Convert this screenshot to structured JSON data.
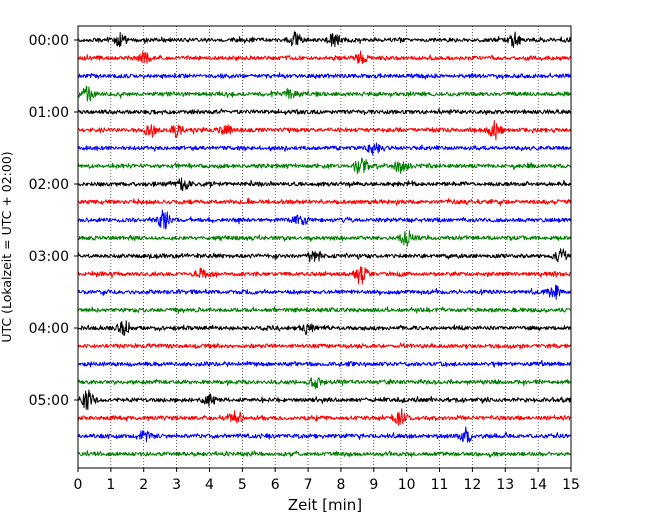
{
  "chart_data": {
    "type": "line",
    "subtype": "helicorder",
    "title": "",
    "xlabel": "Zeit  [min]",
    "ylabel": "UTC (Lokalzeit = UTC + 02:00)",
    "xlim": [
      0,
      15
    ],
    "x_ticks": [
      "0",
      "1",
      "2",
      "3",
      "4",
      "5",
      "6",
      "7",
      "8",
      "9",
      "10",
      "11",
      "12",
      "13",
      "14",
      "15"
    ],
    "y_tick_labels": [
      "00:00",
      "01:00",
      "02:00",
      "03:00",
      "04:00",
      "05:00"
    ],
    "y_tick_trace_index": [
      0,
      4,
      8,
      12,
      16,
      20
    ],
    "trace_count": 24,
    "minutes_per_trace": 15,
    "trace_colors": [
      "#000000",
      "#ff0000",
      "#0000ff",
      "#008000"
    ],
    "vertical_grid": "dotted",
    "events": [
      {
        "trace": 0,
        "minute": 1.3,
        "amp": 1.3
      },
      {
        "trace": 0,
        "minute": 6.6,
        "amp": 1.4
      },
      {
        "trace": 0,
        "minute": 7.8,
        "amp": 1.3
      },
      {
        "trace": 0,
        "minute": 13.3,
        "amp": 1.4
      },
      {
        "trace": 1,
        "minute": 2.0,
        "amp": 1.1
      },
      {
        "trace": 1,
        "minute": 8.6,
        "amp": 1.2
      },
      {
        "trace": 3,
        "minute": 0.3,
        "amp": 1.4
      },
      {
        "trace": 3,
        "minute": 6.5,
        "amp": 1.0
      },
      {
        "trace": 5,
        "minute": 2.2,
        "amp": 1.5
      },
      {
        "trace": 5,
        "minute": 3.0,
        "amp": 1.3
      },
      {
        "trace": 5,
        "minute": 4.5,
        "amp": 1.0
      },
      {
        "trace": 5,
        "minute": 12.7,
        "amp": 1.8
      },
      {
        "trace": 6,
        "minute": 9.0,
        "amp": 1.2
      },
      {
        "trace": 7,
        "minute": 8.6,
        "amp": 2.0
      },
      {
        "trace": 7,
        "minute": 9.8,
        "amp": 1.4
      },
      {
        "trace": 8,
        "minute": 3.2,
        "amp": 1.2
      },
      {
        "trace": 10,
        "minute": 2.6,
        "amp": 2.0
      },
      {
        "trace": 10,
        "minute": 6.8,
        "amp": 1.2
      },
      {
        "trace": 11,
        "minute": 10.0,
        "amp": 1.5
      },
      {
        "trace": 12,
        "minute": 7.2,
        "amp": 1.3
      },
      {
        "trace": 12,
        "minute": 14.7,
        "amp": 1.2
      },
      {
        "trace": 13,
        "minute": 8.6,
        "amp": 2.0
      },
      {
        "trace": 13,
        "minute": 3.8,
        "amp": 1.2
      },
      {
        "trace": 14,
        "minute": 14.5,
        "amp": 1.4
      },
      {
        "trace": 16,
        "minute": 1.4,
        "amp": 1.5
      },
      {
        "trace": 16,
        "minute": 7.0,
        "amp": 1.2
      },
      {
        "trace": 19,
        "minute": 7.2,
        "amp": 1.2
      },
      {
        "trace": 20,
        "minute": 0.3,
        "amp": 2.0
      },
      {
        "trace": 20,
        "minute": 4.0,
        "amp": 1.1
      },
      {
        "trace": 21,
        "minute": 4.8,
        "amp": 1.3
      },
      {
        "trace": 21,
        "minute": 9.8,
        "amp": 1.4
      },
      {
        "trace": 22,
        "minute": 11.8,
        "amp": 1.7
      },
      {
        "trace": 22,
        "minute": 2.0,
        "amp": 1.1
      }
    ]
  }
}
